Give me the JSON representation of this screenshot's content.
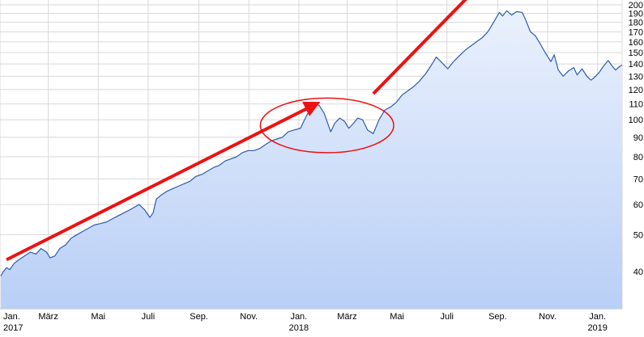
{
  "chart_data": {
    "type": "area",
    "y_scale": "log",
    "ylim": [
      32,
      200
    ],
    "y_ticks": [
      "40",
      "50",
      "60",
      "70",
      "80",
      "90",
      "100",
      "110",
      "120",
      "130",
      "140",
      "150",
      "160",
      "170",
      "180",
      "190",
      "200"
    ],
    "x_range": [
      "2017-01-01",
      "2019-01-31"
    ],
    "x_ticks": [
      {
        "date": "2017-01-01",
        "label": "Jan.",
        "year": "2017"
      },
      {
        "date": "2017-03-01",
        "label": "März"
      },
      {
        "date": "2017-05-01",
        "label": "Mai"
      },
      {
        "date": "2017-07-01",
        "label": "Juli"
      },
      {
        "date": "2017-09-01",
        "label": "Sep."
      },
      {
        "date": "2017-11-01",
        "label": "Nov."
      },
      {
        "date": "2018-01-01",
        "label": "Jan.",
        "year": "2018"
      },
      {
        "date": "2018-03-01",
        "label": "März"
      },
      {
        "date": "2018-05-01",
        "label": "Mai"
      },
      {
        "date": "2018-07-01",
        "label": "Juli"
      },
      {
        "date": "2018-09-01",
        "label": "Sep."
      },
      {
        "date": "2018-11-01",
        "label": "Nov."
      },
      {
        "date": "2019-01-01",
        "label": "Jan.",
        "year": "2019"
      }
    ],
    "grid": true,
    "colors": {
      "line": "#2a5cae",
      "fill_top": "#eaf1fd",
      "fill_bottom": "#b9cff6",
      "grid": "#d8d8d8",
      "annotation": "#ee1111"
    },
    "series": [
      {
        "points": [
          [
            "2017-01-02",
            39
          ],
          [
            "2017-01-05",
            40
          ],
          [
            "2017-01-09",
            41
          ],
          [
            "2017-01-13",
            40.5
          ],
          [
            "2017-01-18",
            42
          ],
          [
            "2017-01-24",
            43
          ],
          [
            "2017-01-31",
            44
          ],
          [
            "2017-02-07",
            45
          ],
          [
            "2017-02-14",
            44.5
          ],
          [
            "2017-02-20",
            46
          ],
          [
            "2017-02-27",
            45
          ],
          [
            "2017-03-03",
            43.5
          ],
          [
            "2017-03-09",
            44
          ],
          [
            "2017-03-15",
            46
          ],
          [
            "2017-03-22",
            47
          ],
          [
            "2017-03-29",
            49
          ],
          [
            "2017-04-05",
            50
          ],
          [
            "2017-04-12",
            51
          ],
          [
            "2017-04-19",
            52
          ],
          [
            "2017-04-26",
            53
          ],
          [
            "2017-05-04",
            53.5
          ],
          [
            "2017-05-11",
            54
          ],
          [
            "2017-05-18",
            55
          ],
          [
            "2017-05-25",
            56
          ],
          [
            "2017-06-01",
            57
          ],
          [
            "2017-06-08",
            58
          ],
          [
            "2017-06-14",
            59
          ],
          [
            "2017-06-20",
            60
          ],
          [
            "2017-06-27",
            58
          ],
          [
            "2017-07-03",
            55.5
          ],
          [
            "2017-07-07",
            57
          ],
          [
            "2017-07-11",
            62
          ],
          [
            "2017-07-17",
            63.5
          ],
          [
            "2017-07-24",
            65
          ],
          [
            "2017-07-31",
            66
          ],
          [
            "2017-08-07",
            67
          ],
          [
            "2017-08-14",
            68
          ],
          [
            "2017-08-21",
            69
          ],
          [
            "2017-08-28",
            71
          ],
          [
            "2017-09-05",
            72
          ],
          [
            "2017-09-12",
            73.5
          ],
          [
            "2017-09-19",
            75
          ],
          [
            "2017-09-26",
            76
          ],
          [
            "2017-10-03",
            78
          ],
          [
            "2017-10-10",
            79
          ],
          [
            "2017-10-17",
            80
          ],
          [
            "2017-10-24",
            82
          ],
          [
            "2017-10-31",
            83
          ],
          [
            "2017-11-07",
            83
          ],
          [
            "2017-11-14",
            84
          ],
          [
            "2017-11-21",
            86
          ],
          [
            "2017-11-28",
            88
          ],
          [
            "2017-12-05",
            89
          ],
          [
            "2017-12-12",
            90
          ],
          [
            "2017-12-19",
            93
          ],
          [
            "2017-12-26",
            94
          ],
          [
            "2018-01-03",
            95
          ],
          [
            "2018-01-08",
            100
          ],
          [
            "2018-01-12",
            104
          ],
          [
            "2018-01-17",
            106
          ],
          [
            "2018-01-22",
            110
          ],
          [
            "2018-01-26",
            109
          ],
          [
            "2018-02-01",
            104
          ],
          [
            "2018-02-06",
            97
          ],
          [
            "2018-02-09",
            93
          ],
          [
            "2018-02-14",
            98
          ],
          [
            "2018-02-20",
            101
          ],
          [
            "2018-02-26",
            99
          ],
          [
            "2018-03-03",
            95
          ],
          [
            "2018-03-09",
            98
          ],
          [
            "2018-03-14",
            101
          ],
          [
            "2018-03-20",
            100
          ],
          [
            "2018-03-26",
            94
          ],
          [
            "2018-04-02",
            92
          ],
          [
            "2018-04-09",
            100
          ],
          [
            "2018-04-16",
            106
          ],
          [
            "2018-04-23",
            108
          ],
          [
            "2018-04-30",
            111
          ],
          [
            "2018-05-07",
            116
          ],
          [
            "2018-05-14",
            119
          ],
          [
            "2018-05-21",
            122
          ],
          [
            "2018-05-28",
            126
          ],
          [
            "2018-06-05",
            132
          ],
          [
            "2018-06-11",
            138
          ],
          [
            "2018-06-18",
            146
          ],
          [
            "2018-06-25",
            141
          ],
          [
            "2018-07-02",
            136
          ],
          [
            "2018-07-09",
            142
          ],
          [
            "2018-07-16",
            147
          ],
          [
            "2018-07-23",
            152
          ],
          [
            "2018-07-30",
            156
          ],
          [
            "2018-08-06",
            160
          ],
          [
            "2018-08-13",
            164
          ],
          [
            "2018-08-20",
            170
          ],
          [
            "2018-08-27",
            180
          ],
          [
            "2018-09-03",
            191
          ],
          [
            "2018-09-07",
            187
          ],
          [
            "2018-09-12",
            193
          ],
          [
            "2018-09-18",
            188
          ],
          [
            "2018-09-24",
            192
          ],
          [
            "2018-10-01",
            191
          ],
          [
            "2018-10-05",
            183
          ],
          [
            "2018-10-11",
            170
          ],
          [
            "2018-10-17",
            166
          ],
          [
            "2018-10-23",
            158
          ],
          [
            "2018-10-29",
            150
          ],
          [
            "2018-11-05",
            142
          ],
          [
            "2018-11-09",
            148
          ],
          [
            "2018-11-14",
            135
          ],
          [
            "2018-11-20",
            130
          ],
          [
            "2018-11-26",
            134
          ],
          [
            "2018-12-03",
            137
          ],
          [
            "2018-12-07",
            131
          ],
          [
            "2018-12-13",
            136
          ],
          [
            "2018-12-19",
            130
          ],
          [
            "2018-12-24",
            127
          ],
          [
            "2018-12-28",
            129
          ],
          [
            "2019-01-03",
            133
          ],
          [
            "2019-01-08",
            138
          ],
          [
            "2019-01-14",
            143
          ],
          [
            "2019-01-18",
            139
          ],
          [
            "2019-01-23",
            135
          ],
          [
            "2019-01-28",
            138
          ],
          [
            "2019-01-31",
            139
          ]
        ]
      }
    ],
    "annotations": [
      {
        "type": "arrow",
        "from": [
          "2017-01-09",
          43
        ],
        "to": [
          "2018-01-22",
          110
        ]
      },
      {
        "type": "arrow",
        "from": [
          "2018-04-02",
          117
        ],
        "to": [
          "2018-08-14",
          230
        ]
      },
      {
        "type": "ellipse",
        "center": [
          "2018-02-28",
          97
        ],
        "x_extent": [
          "2017-11-15",
          "2018-04-27"
        ],
        "y_extent": [
          82,
          114
        ]
      }
    ]
  }
}
